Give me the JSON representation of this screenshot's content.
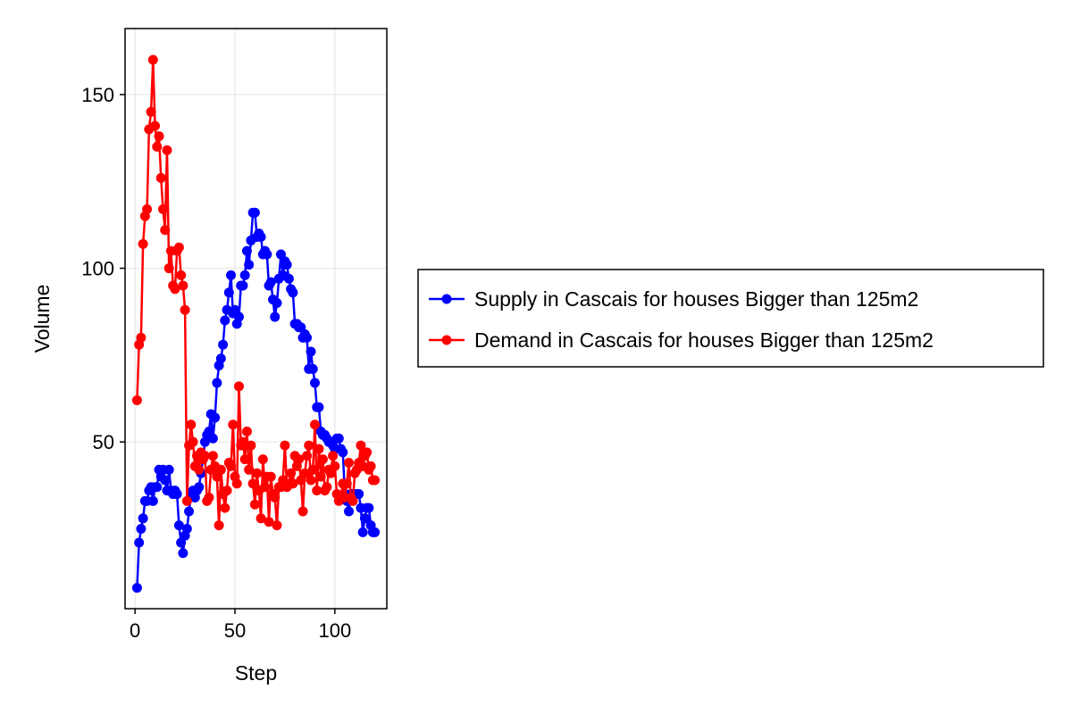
{
  "chart_data": {
    "type": "line",
    "title": "",
    "xlabel": "Step",
    "ylabel": "Volume",
    "xlim": [
      -5,
      126
    ],
    "ylim": [
      2,
      169
    ],
    "x_ticks": [
      0,
      50,
      100
    ],
    "y_ticks": [
      50,
      100,
      150
    ],
    "grid": true,
    "legend_position": "right",
    "x": [
      1,
      2,
      3,
      4,
      5,
      6,
      7,
      8,
      9,
      10,
      11,
      12,
      13,
      14,
      15,
      16,
      17,
      18,
      19,
      20,
      21,
      22,
      23,
      24,
      25,
      26,
      27,
      28,
      29,
      30,
      31,
      32,
      33,
      34,
      35,
      36,
      37,
      38,
      39,
      40,
      41,
      42,
      43,
      44,
      45,
      46,
      47,
      48,
      49,
      50,
      51,
      52,
      53,
      54,
      55,
      56,
      57,
      58,
      59,
      60,
      61,
      62,
      63,
      64,
      65,
      66,
      67,
      68,
      69,
      70,
      71,
      72,
      73,
      74,
      75,
      76,
      77,
      78,
      79,
      80,
      81,
      82,
      83,
      84,
      85,
      86,
      87,
      88,
      89,
      90,
      91,
      92,
      93,
      94,
      95,
      96,
      97,
      98,
      99,
      100,
      101,
      102,
      103,
      104,
      105,
      106,
      107,
      108,
      109,
      110,
      111,
      112,
      113,
      114,
      115,
      116,
      117,
      118,
      119,
      120
    ],
    "series": [
      {
        "name": "Supply in Cascais for houses Bigger than 125m2",
        "color": "#0000ff",
        "values": [
          8,
          21,
          25,
          28,
          33,
          33,
          36,
          37,
          33,
          37,
          37,
          42,
          40,
          42,
          39,
          36,
          42,
          36,
          35,
          36,
          35,
          26,
          21,
          18,
          23,
          25,
          30,
          35,
          36,
          34,
          36,
          37,
          41,
          45,
          50,
          52,
          53,
          58,
          51,
          57,
          67,
          72,
          74,
          78,
          85,
          88,
          93,
          98,
          87,
          88,
          84,
          86,
          95,
          95,
          98,
          105,
          101,
          108,
          116,
          116,
          109,
          110,
          109,
          104,
          105,
          104,
          95,
          96,
          91,
          86,
          90,
          97,
          104,
          98,
          102,
          101,
          97,
          94,
          93,
          84,
          84,
          83,
          83,
          80,
          81,
          80,
          71,
          76,
          71,
          67,
          60,
          60,
          53,
          52,
          52,
          51,
          50,
          50,
          49,
          48,
          51,
          51,
          48,
          47,
          35,
          33,
          30,
          35,
          35,
          35,
          35,
          35,
          31,
          24,
          28,
          31,
          31,
          26,
          24,
          24
        ]
      },
      {
        "name": "Demand in Cascais for houses Bigger than 125m2",
        "color": "#ff0000",
        "values": [
          62,
          78,
          80,
          107,
          115,
          117,
          140,
          145,
          160,
          141,
          135,
          138,
          126,
          117,
          111,
          134,
          100,
          105,
          95,
          94,
          105,
          106,
          98,
          95,
          88,
          33,
          49,
          55,
          50,
          43,
          46,
          42,
          47,
          45,
          46,
          33,
          34,
          42,
          46,
          43,
          40,
          26,
          42,
          35,
          31,
          36,
          44,
          43,
          55,
          40,
          38,
          66,
          49,
          50,
          45,
          53,
          42,
          49,
          38,
          32,
          41,
          36,
          28,
          45,
          37,
          40,
          27,
          40,
          35,
          34,
          26,
          37,
          37,
          39,
          49,
          37,
          38,
          41,
          38,
          46,
          43,
          45,
          39,
          30,
          41,
          46,
          49,
          39,
          42,
          55,
          36,
          48,
          40,
          45,
          36,
          37,
          42,
          41,
          46,
          43,
          35,
          33,
          34,
          38,
          34,
          38,
          44,
          34,
          33,
          41,
          42,
          44,
          49,
          43,
          46,
          47,
          42,
          43,
          39,
          39
        ]
      }
    ]
  }
}
